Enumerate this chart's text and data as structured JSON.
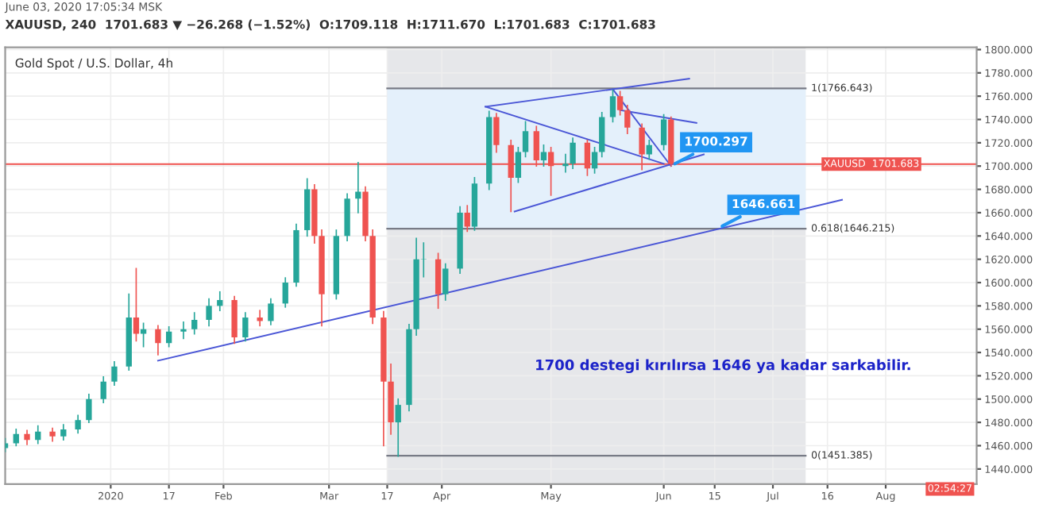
{
  "chart_data": {
    "type": "candlestick",
    "title": "XAUUSD, 240  1701.683 ▼ −26.268 (−1.52%)  O:1709.118  H:1711.670  L:1701.683  C:1701.683",
    "subtitle": "Gold Spot / U.S. Dollar, 4h",
    "x": [
      "2019-12-03",
      "2019-12-06",
      "2019-12-09",
      "2019-12-12",
      "2019-12-16",
      "2019-12-19",
      "2019-12-23",
      "2019-12-26",
      "2019-12-30",
      "2020-01-02",
      "2020-01-06",
      "2020-01-08",
      "2020-01-10",
      "2020-01-14",
      "2020-01-17",
      "2020-01-21",
      "2020-01-24",
      "2020-01-28",
      "2020-01-31",
      "2020-02-04",
      "2020-02-07",
      "2020-02-11",
      "2020-02-14",
      "2020-02-18",
      "2020-02-21",
      "2020-02-24",
      "2020-02-26",
      "2020-02-28",
      "2020-03-03",
      "2020-03-06",
      "2020-03-09",
      "2020-03-11",
      "2020-03-13",
      "2020-03-16",
      "2020-03-18",
      "2020-03-20",
      "2020-03-23",
      "2020-03-25",
      "2020-03-27",
      "2020-03-31",
      "2020-04-02",
      "2020-04-06",
      "2020-04-08",
      "2020-04-10",
      "2020-04-14",
      "2020-04-16",
      "2020-04-20",
      "2020-04-22",
      "2020-04-24",
      "2020-04-27",
      "2020-04-29",
      "2020-05-01",
      "2020-05-05",
      "2020-05-07",
      "2020-05-11",
      "2020-05-13",
      "2020-05-15",
      "2020-05-18",
      "2020-05-20",
      "2020-05-22",
      "2020-05-26",
      "2020-05-28",
      "2020-06-01",
      "2020-06-03"
    ],
    "ohlc": [
      [
        1458,
        1466,
        1455,
        1462
      ],
      [
        1462,
        1474,
        1460,
        1470
      ],
      [
        1470,
        1473,
        1461,
        1465
      ],
      [
        1465,
        1477,
        1462,
        1472
      ],
      [
        1472,
        1475,
        1464,
        1468
      ],
      [
        1468,
        1478,
        1465,
        1474
      ],
      [
        1474,
        1486,
        1471,
        1482
      ],
      [
        1482,
        1504,
        1480,
        1500
      ],
      [
        1500,
        1519,
        1497,
        1515
      ],
      [
        1515,
        1532,
        1512,
        1528
      ],
      [
        1528,
        1590,
        1525,
        1570
      ],
      [
        1570,
        1612,
        1550,
        1556
      ],
      [
        1556,
        1565,
        1545,
        1560
      ],
      [
        1560,
        1563,
        1538,
        1548
      ],
      [
        1548,
        1562,
        1545,
        1558
      ],
      [
        1558,
        1566,
        1552,
        1560
      ],
      [
        1560,
        1574,
        1556,
        1568
      ],
      [
        1568,
        1586,
        1563,
        1580
      ],
      [
        1580,
        1592,
        1576,
        1585
      ],
      [
        1585,
        1588,
        1548,
        1553
      ],
      [
        1553,
        1574,
        1550,
        1570
      ],
      [
        1570,
        1576,
        1563,
        1567
      ],
      [
        1567,
        1586,
        1564,
        1582
      ],
      [
        1582,
        1604,
        1579,
        1600
      ],
      [
        1600,
        1650,
        1597,
        1645
      ],
      [
        1645,
        1689,
        1640,
        1680
      ],
      [
        1680,
        1684,
        1634,
        1640
      ],
      [
        1640,
        1645,
        1563,
        1590
      ],
      [
        1590,
        1645,
        1586,
        1640
      ],
      [
        1640,
        1676,
        1636,
        1672
      ],
      [
        1672,
        1703,
        1660,
        1678
      ],
      [
        1678,
        1682,
        1636,
        1640
      ],
      [
        1640,
        1645,
        1565,
        1570
      ],
      [
        1570,
        1575,
        1460,
        1515
      ],
      [
        1515,
        1530,
        1470,
        1480
      ],
      [
        1480,
        1500,
        1451,
        1495
      ],
      [
        1495,
        1564,
        1490,
        1560
      ],
      [
        1560,
        1638,
        1555,
        1620
      ],
      [
        1620,
        1634,
        1605,
        1620
      ],
      [
        1620,
        1625,
        1578,
        1590
      ],
      [
        1590,
        1616,
        1585,
        1612
      ],
      [
        1612,
        1665,
        1608,
        1660
      ],
      [
        1660,
        1666,
        1644,
        1648
      ],
      [
        1648,
        1690,
        1645,
        1685
      ],
      [
        1685,
        1747,
        1680,
        1742
      ],
      [
        1742,
        1745,
        1712,
        1718
      ],
      [
        1718,
        1722,
        1661,
        1690
      ],
      [
        1690,
        1716,
        1686,
        1712
      ],
      [
        1712,
        1738,
        1708,
        1730
      ],
      [
        1730,
        1734,
        1700,
        1705
      ],
      [
        1705,
        1718,
        1700,
        1712
      ],
      [
        1712,
        1716,
        1675,
        1700
      ],
      [
        1700,
        1710,
        1695,
        1702
      ],
      [
        1702,
        1724,
        1698,
        1720
      ],
      [
        1720,
        1722,
        1692,
        1698
      ],
      [
        1698,
        1716,
        1694,
        1712
      ],
      [
        1712,
        1746,
        1708,
        1742
      ],
      [
        1742,
        1765,
        1738,
        1760
      ],
      [
        1760,
        1764,
        1744,
        1748
      ],
      [
        1748,
        1752,
        1728,
        1733
      ],
      [
        1733,
        1736,
        1697,
        1710
      ],
      [
        1710,
        1722,
        1706,
        1718
      ],
      [
        1718,
        1744,
        1714,
        1740
      ],
      [
        1740,
        1742,
        1700,
        1701.683
      ]
    ],
    "colors": [
      "#26a69a",
      "#26a69a",
      "#ef5350",
      "#26a69a",
      "#ef5350",
      "#26a69a",
      "#26a69a",
      "#26a69a",
      "#26a69a",
      "#26a69a",
      "#26a69a",
      "#ef5350",
      "#26a69a",
      "#ef5350",
      "#26a69a",
      "#26a69a",
      "#26a69a",
      "#26a69a",
      "#26a69a",
      "#ef5350",
      "#26a69a",
      "#ef5350",
      "#26a69a",
      "#26a69a",
      "#26a69a",
      "#26a69a",
      "#ef5350",
      "#ef5350",
      "#26a69a",
      "#26a69a",
      "#26a69a",
      "#ef5350",
      "#ef5350",
      "#ef5350",
      "#ef5350",
      "#26a69a",
      "#26a69a",
      "#26a69a",
      "#26a69a",
      "#ef5350",
      "#26a69a",
      "#26a69a",
      "#ef5350",
      "#26a69a",
      "#26a69a",
      "#ef5350",
      "#ef5350",
      "#26a69a",
      "#26a69a",
      "#ef5350",
      "#26a69a",
      "#ef5350",
      "#26a69a",
      "#26a69a",
      "#ef5350",
      "#26a69a",
      "#26a69a",
      "#26a69a",
      "#ef5350",
      "#ef5350",
      "#ef5350",
      "#26a69a",
      "#26a69a",
      "#ef5350"
    ],
    "series": [
      {
        "type": "line",
        "color": "#4a56d6",
        "x": [
          "2020-01-14",
          "2020-07-20"
        ],
        "values": [
          1533,
          1671
        ]
      },
      {
        "type": "line",
        "color": "#4a56d6",
        "x": [
          "2020-04-13",
          "2020-06-08"
        ],
        "values": [
          1751,
          1775
        ]
      },
      {
        "type": "line",
        "color": "#4a56d6",
        "x": [
          "2020-04-13",
          "2020-06-01"
        ],
        "values": [
          1751,
          1702
        ]
      },
      {
        "type": "line",
        "color": "#4a56d6",
        "x": [
          "2020-04-21",
          "2020-06-12"
        ],
        "values": [
          1661,
          1710
        ]
      },
      {
        "type": "line",
        "color": "#4a56d6",
        "x": [
          "2020-05-18",
          "2020-06-03"
        ],
        "values": [
          1766,
          1700
        ]
      },
      {
        "type": "line",
        "color": "#4a56d6",
        "x": [
          "2020-05-20",
          "2020-06-10"
        ],
        "values": [
          1748,
          1737
        ]
      }
    ],
    "bands": [
      {
        "axis": "x",
        "from": "2020-03-17",
        "to": "2020-07-10",
        "color": "#e6e7ea"
      },
      {
        "axis": "y",
        "from": 1646.215,
        "to": 1766.643,
        "color": "#e4f0fb"
      }
    ],
    "ref_lines": [
      {
        "axis": "y",
        "value": 1766.643,
        "label": "1(1766.643)",
        "color": "#787b86"
      },
      {
        "axis": "y",
        "value": 1646.215,
        "label": "0.618(1646.215)",
        "color": "#787b86"
      },
      {
        "axis": "y",
        "value": 1451.385,
        "label": "0(1451.385)",
        "color": "#787b86"
      },
      {
        "axis": "y",
        "value": 1701.683,
        "label": "XAUUSD  1701.683",
        "color": "#ef5350"
      }
    ],
    "annotations": [
      "June 03, 2020 17:05:34 MSK",
      "02:54:27",
      "1700 destegi kırılırsa 1646 ya kadar sarkabilir.",
      {
        "text": "1646.661",
        "x": "2020-06-16",
        "y": 1646.661
      },
      {
        "text": "1700.297",
        "x": "2020-06-03",
        "y": 1700.297
      }
    ],
    "xlim": [
      "2019-12-03",
      "2020-08-26"
    ],
    "xticks": [
      {
        "value": "2020-01-01",
        "label": "2020"
      },
      {
        "value": "2020-01-17",
        "label": "17"
      },
      {
        "value": "2020-02-01",
        "label": "Feb"
      },
      {
        "value": "2020-03-01",
        "label": "Mar"
      },
      {
        "value": "2020-03-17",
        "label": "17"
      },
      {
        "value": "2020-04-01",
        "label": "Apr"
      },
      {
        "value": "2020-05-01",
        "label": "May"
      },
      {
        "value": "2020-06-01",
        "label": "Jun"
      },
      {
        "value": "2020-06-15",
        "label": "15"
      },
      {
        "value": "2020-07-01",
        "label": "Jul"
      },
      {
        "value": "2020-07-16",
        "label": "16"
      },
      {
        "value": "2020-08-01",
        "label": "Aug"
      }
    ],
    "ylim": [
      1427,
      1802
    ],
    "yticks": [
      {
        "value": 1440,
        "label": "1440.000"
      },
      {
        "value": 1460,
        "label": "1460.000"
      },
      {
        "value": 1480,
        "label": "1480.000"
      },
      {
        "value": 1500,
        "label": "1500.000"
      },
      {
        "value": 1520,
        "label": "1520.000"
      },
      {
        "value": 1540,
        "label": "1540.000"
      },
      {
        "value": 1560,
        "label": "1560.000"
      },
      {
        "value": 1580,
        "label": "1580.000"
      },
      {
        "value": 1600,
        "label": "1600.000"
      },
      {
        "value": 1620,
        "label": "1620.000"
      },
      {
        "value": 1640,
        "label": "1640.000"
      },
      {
        "value": 1660,
        "label": "1660.000"
      },
      {
        "value": 1680,
        "label": "1680.000"
      },
      {
        "value": 1700,
        "label": "1700.000"
      },
      {
        "value": 1720,
        "label": "1720.000"
      },
      {
        "value": 1740,
        "label": "1740.000"
      },
      {
        "value": 1760,
        "label": "1760.000"
      },
      {
        "value": 1780,
        "label": "1780.000"
      },
      {
        "value": 1800,
        "label": "1800.000"
      }
    ],
    "grid": true
  }
}
